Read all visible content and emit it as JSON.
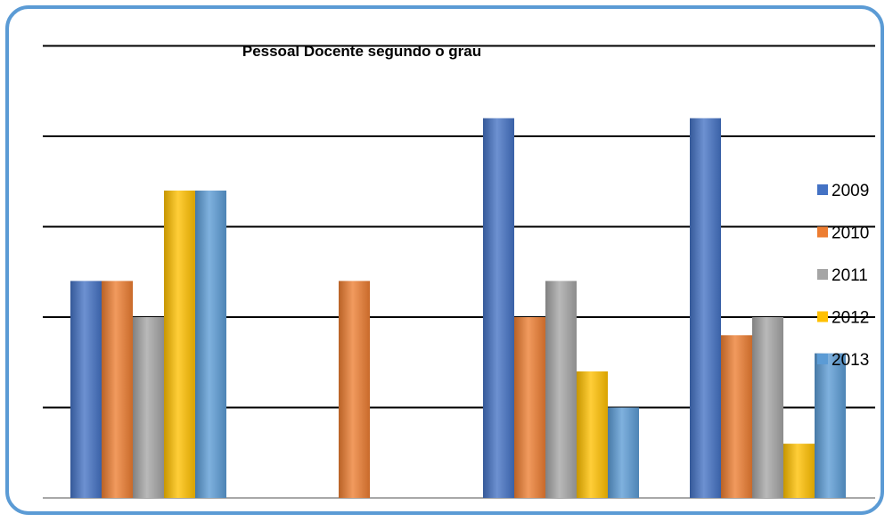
{
  "chart_data": {
    "type": "bar",
    "title": "Pessoal Docente segundo o grau",
    "xlabel": "",
    "ylabel": "",
    "categories": [
      "",
      "",
      "",
      ""
    ],
    "ylim": [
      0,
      5.5
    ],
    "grid": true,
    "legend_position": "right",
    "series": [
      {
        "name": "2009",
        "color": "#4472c4",
        "values": [
          2.4,
          0,
          4.2,
          4.2
        ]
      },
      {
        "name": "2010",
        "color": "#ed7d31",
        "values": [
          2.4,
          2.4,
          2.0,
          1.8
        ]
      },
      {
        "name": "2011",
        "color": "#a5a5a5",
        "values": [
          2.0,
          0,
          2.4,
          2.0
        ]
      },
      {
        "name": "2012",
        "color": "#ffc000",
        "values": [
          3.4,
          0,
          1.4,
          0.6
        ]
      },
      {
        "name": "2013",
        "color": "#5b9bd5",
        "values": [
          3.4,
          0,
          1.0,
          1.6
        ]
      }
    ]
  }
}
